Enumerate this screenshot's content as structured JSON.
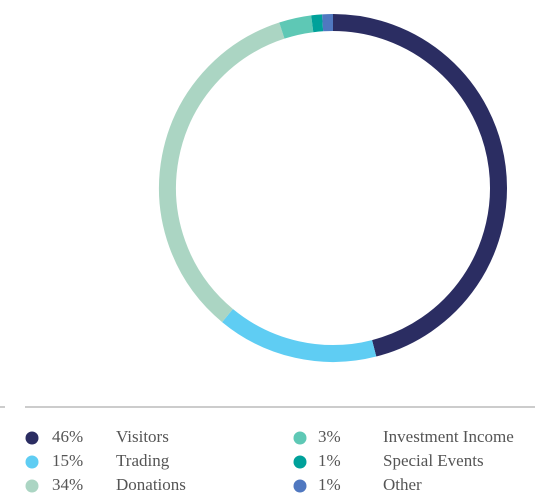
{
  "chart_data": {
    "type": "pie",
    "categories": [
      "Visitors",
      "Trading",
      "Donations",
      "Investment Income",
      "Special Events",
      "Other"
    ],
    "values": [
      46,
      15,
      34,
      3,
      1,
      1
    ],
    "value_labels": [
      "46%",
      "15%",
      "34%",
      "3%",
      "1%",
      "1%"
    ],
    "colors": [
      "#2b2d62",
      "#5fcdf3",
      "#abd5c3",
      "#5ec8b5",
      "#00a19a",
      "#5078c0"
    ]
  }
}
